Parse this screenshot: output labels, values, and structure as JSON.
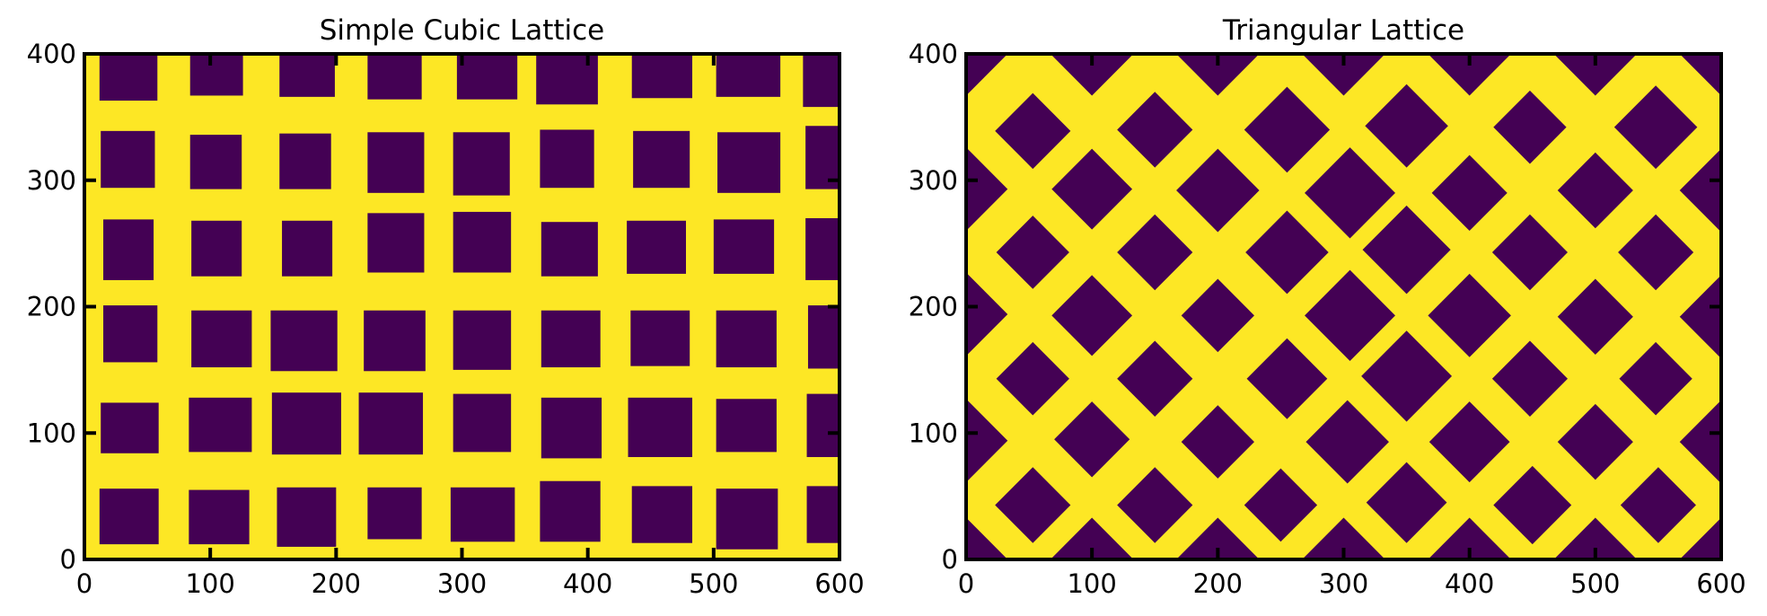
{
  "colors": {
    "background": "#fde725",
    "foreground": "#440154",
    "axes": "#000000"
  },
  "chart_data": [
    {
      "type": "heatmap",
      "title": "Simple Cubic Lattice",
      "xlim": [
        0,
        600
      ],
      "ylim": [
        0,
        400
      ],
      "x_ticks": [
        0,
        100,
        200,
        300,
        400,
        500,
        600
      ],
      "y_ticks": [
        0,
        100,
        200,
        300,
        400
      ],
      "grid": false,
      "legend": "none",
      "values": {
        "background": 1,
        "cells": 0
      },
      "cell_shape": "square",
      "cells": [
        {
          "x": 12,
          "y": 363,
          "w": 46,
          "h": 37
        },
        {
          "x": 84,
          "y": 367,
          "w": 42,
          "h": 33
        },
        {
          "x": 155,
          "y": 366,
          "w": 44,
          "h": 34
        },
        {
          "x": 225,
          "y": 364,
          "w": 43,
          "h": 36
        },
        {
          "x": 296,
          "y": 364,
          "w": 48,
          "h": 36
        },
        {
          "x": 359,
          "y": 360,
          "w": 49,
          "h": 40
        },
        {
          "x": 435,
          "y": 365,
          "w": 48,
          "h": 35
        },
        {
          "x": 502,
          "y": 366,
          "w": 51,
          "h": 34
        },
        {
          "x": 571,
          "y": 358,
          "w": 29,
          "h": 42
        },
        {
          "x": 13,
          "y": 294,
          "w": 43,
          "h": 45
        },
        {
          "x": 84,
          "y": 293,
          "w": 41,
          "h": 43
        },
        {
          "x": 155,
          "y": 293,
          "w": 41,
          "h": 44
        },
        {
          "x": 225,
          "y": 290,
          "w": 45,
          "h": 48
        },
        {
          "x": 293,
          "y": 288,
          "w": 45,
          "h": 50
        },
        {
          "x": 362,
          "y": 294,
          "w": 43,
          "h": 46
        },
        {
          "x": 436,
          "y": 294,
          "w": 45,
          "h": 45
        },
        {
          "x": 503,
          "y": 290,
          "w": 50,
          "h": 48
        },
        {
          "x": 573,
          "y": 293,
          "w": 27,
          "h": 50
        },
        {
          "x": 15,
          "y": 221,
          "w": 40,
          "h": 48
        },
        {
          "x": 85,
          "y": 224,
          "w": 40,
          "h": 44
        },
        {
          "x": 157,
          "y": 224,
          "w": 40,
          "h": 44
        },
        {
          "x": 225,
          "y": 227,
          "w": 45,
          "h": 47
        },
        {
          "x": 293,
          "y": 227,
          "w": 46,
          "h": 48
        },
        {
          "x": 363,
          "y": 224,
          "w": 45,
          "h": 43
        },
        {
          "x": 431,
          "y": 226,
          "w": 47,
          "h": 42
        },
        {
          "x": 500,
          "y": 226,
          "w": 48,
          "h": 43
        },
        {
          "x": 573,
          "y": 221,
          "w": 27,
          "h": 49
        },
        {
          "x": 15,
          "y": 156,
          "w": 43,
          "h": 45
        },
        {
          "x": 85,
          "y": 152,
          "w": 48,
          "h": 45
        },
        {
          "x": 148,
          "y": 149,
          "w": 53,
          "h": 48
        },
        {
          "x": 222,
          "y": 149,
          "w": 49,
          "h": 48
        },
        {
          "x": 293,
          "y": 150,
          "w": 46,
          "h": 47
        },
        {
          "x": 363,
          "y": 152,
          "w": 47,
          "h": 45
        },
        {
          "x": 434,
          "y": 153,
          "w": 47,
          "h": 44
        },
        {
          "x": 502,
          "y": 152,
          "w": 48,
          "h": 45
        },
        {
          "x": 575,
          "y": 151,
          "w": 25,
          "h": 50
        },
        {
          "x": 13,
          "y": 84,
          "w": 46,
          "h": 40
        },
        {
          "x": 83,
          "y": 85,
          "w": 50,
          "h": 43
        },
        {
          "x": 149,
          "y": 83,
          "w": 55,
          "h": 49
        },
        {
          "x": 218,
          "y": 83,
          "w": 51,
          "h": 49
        },
        {
          "x": 293,
          "y": 85,
          "w": 46,
          "h": 46
        },
        {
          "x": 363,
          "y": 80,
          "w": 48,
          "h": 48
        },
        {
          "x": 432,
          "y": 81,
          "w": 51,
          "h": 47
        },
        {
          "x": 502,
          "y": 85,
          "w": 48,
          "h": 42
        },
        {
          "x": 574,
          "y": 81,
          "w": 26,
          "h": 50
        },
        {
          "x": 12,
          "y": 12,
          "w": 47,
          "h": 44
        },
        {
          "x": 83,
          "y": 12,
          "w": 48,
          "h": 43
        },
        {
          "x": 153,
          "y": 10,
          "w": 47,
          "h": 47
        },
        {
          "x": 225,
          "y": 16,
          "w": 43,
          "h": 41
        },
        {
          "x": 291,
          "y": 14,
          "w": 51,
          "h": 43
        },
        {
          "x": 362,
          "y": 14,
          "w": 48,
          "h": 48
        },
        {
          "x": 435,
          "y": 13,
          "w": 48,
          "h": 45
        },
        {
          "x": 502,
          "y": 8,
          "w": 49,
          "h": 48
        },
        {
          "x": 574,
          "y": 13,
          "w": 26,
          "h": 45
        }
      ]
    },
    {
      "type": "heatmap",
      "title": "Triangular Lattice",
      "xlim": [
        0,
        600
      ],
      "ylim": [
        0,
        400
      ],
      "x_ticks": [
        0,
        100,
        200,
        300,
        400,
        500,
        600
      ],
      "y_ticks": [
        0,
        100,
        200,
        300,
        400
      ],
      "grid": false,
      "legend": "none",
      "values": {
        "background": 1,
        "cells": 0
      },
      "cell_shape": "diamond",
      "cells": [
        {
          "cx": 0,
          "cy": 400,
          "r": 33
        },
        {
          "cx": 100,
          "cy": 400,
          "r": 33
        },
        {
          "cx": 200,
          "cy": 400,
          "r": 33
        },
        {
          "cx": 300,
          "cy": 400,
          "r": 33
        },
        {
          "cx": 400,
          "cy": 400,
          "r": 33
        },
        {
          "cx": 500,
          "cy": 400,
          "r": 33
        },
        {
          "cx": 600,
          "cy": 400,
          "r": 33
        },
        {
          "cx": 53,
          "cy": 339,
          "r": 30
        },
        {
          "cx": 150,
          "cy": 340,
          "r": 30
        },
        {
          "cx": 255,
          "cy": 340,
          "r": 34
        },
        {
          "cx": 350,
          "cy": 343,
          "r": 33
        },
        {
          "cx": 448,
          "cy": 342,
          "r": 29
        },
        {
          "cx": 548,
          "cy": 342,
          "r": 33
        },
        {
          "cx": 0,
          "cy": 293,
          "r": 33
        },
        {
          "cx": 100,
          "cy": 293,
          "r": 32
        },
        {
          "cx": 200,
          "cy": 292,
          "r": 33
        },
        {
          "cx": 305,
          "cy": 290,
          "r": 36
        },
        {
          "cx": 400,
          "cy": 290,
          "r": 30
        },
        {
          "cx": 500,
          "cy": 292,
          "r": 30
        },
        {
          "cx": 600,
          "cy": 292,
          "r": 33
        },
        {
          "cx": 53,
          "cy": 243,
          "r": 29
        },
        {
          "cx": 150,
          "cy": 243,
          "r": 30
        },
        {
          "cx": 255,
          "cy": 243,
          "r": 33
        },
        {
          "cx": 350,
          "cy": 245,
          "r": 35
        },
        {
          "cx": 448,
          "cy": 243,
          "r": 30
        },
        {
          "cx": 548,
          "cy": 243,
          "r": 30
        },
        {
          "cx": 0,
          "cy": 194,
          "r": 33
        },
        {
          "cx": 100,
          "cy": 193,
          "r": 32
        },
        {
          "cx": 200,
          "cy": 193,
          "r": 29
        },
        {
          "cx": 305,
          "cy": 193,
          "r": 36
        },
        {
          "cx": 400,
          "cy": 193,
          "r": 33
        },
        {
          "cx": 500,
          "cy": 192,
          "r": 30
        },
        {
          "cx": 600,
          "cy": 192,
          "r": 33
        },
        {
          "cx": 53,
          "cy": 143,
          "r": 29
        },
        {
          "cx": 150,
          "cy": 143,
          "r": 30
        },
        {
          "cx": 255,
          "cy": 143,
          "r": 32
        },
        {
          "cx": 350,
          "cy": 145,
          "r": 36
        },
        {
          "cx": 448,
          "cy": 143,
          "r": 30
        },
        {
          "cx": 548,
          "cy": 143,
          "r": 29
        },
        {
          "cx": 0,
          "cy": 94,
          "r": 33
        },
        {
          "cx": 100,
          "cy": 95,
          "r": 30
        },
        {
          "cx": 200,
          "cy": 93,
          "r": 29
        },
        {
          "cx": 303,
          "cy": 93,
          "r": 33
        },
        {
          "cx": 400,
          "cy": 93,
          "r": 32
        },
        {
          "cx": 500,
          "cy": 93,
          "r": 30
        },
        {
          "cx": 600,
          "cy": 93,
          "r": 33
        },
        {
          "cx": 53,
          "cy": 43,
          "r": 30
        },
        {
          "cx": 150,
          "cy": 43,
          "r": 30
        },
        {
          "cx": 250,
          "cy": 43,
          "r": 29
        },
        {
          "cx": 350,
          "cy": 45,
          "r": 32
        },
        {
          "cx": 450,
          "cy": 43,
          "r": 31
        },
        {
          "cx": 550,
          "cy": 43,
          "r": 30
        },
        {
          "cx": 0,
          "cy": 0,
          "r": 33
        },
        {
          "cx": 100,
          "cy": 0,
          "r": 33
        },
        {
          "cx": 200,
          "cy": 0,
          "r": 33
        },
        {
          "cx": 300,
          "cy": 0,
          "r": 33
        },
        {
          "cx": 400,
          "cy": 0,
          "r": 33
        },
        {
          "cx": 500,
          "cy": 0,
          "r": 33
        },
        {
          "cx": 600,
          "cy": 0,
          "r": 33
        }
      ]
    }
  ]
}
